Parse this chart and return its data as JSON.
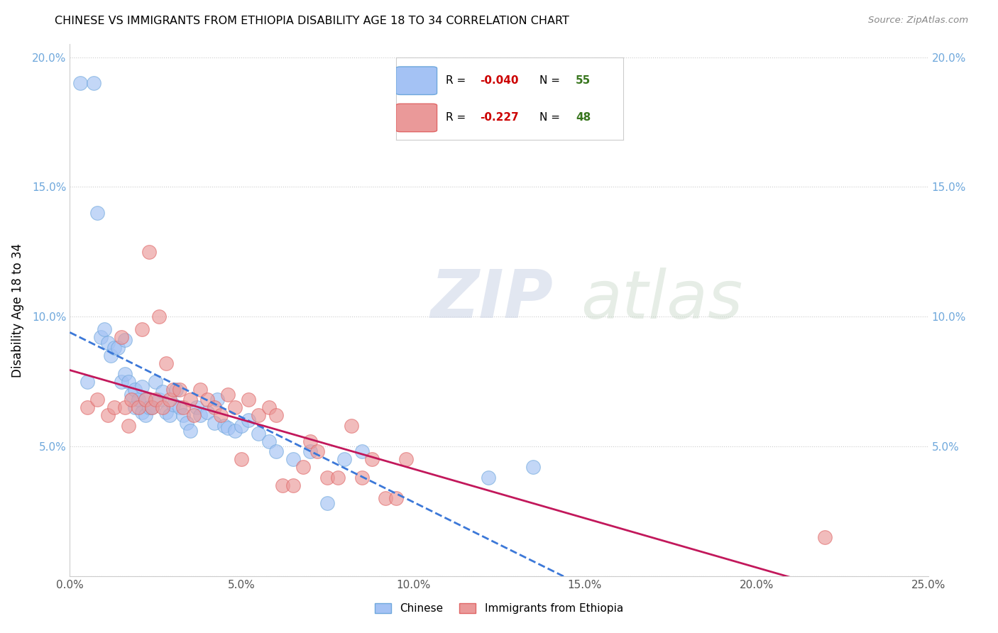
{
  "title": "CHINESE VS IMMIGRANTS FROM ETHIOPIA DISABILITY AGE 18 TO 34 CORRELATION CHART",
  "source": "Source: ZipAtlas.com",
  "ylabel": "Disability Age 18 to 34",
  "xlim": [
    0.0,
    0.25
  ],
  "ylim": [
    0.0,
    0.205
  ],
  "chinese_color": "#a4c2f4",
  "ethiopia_color": "#ea9999",
  "trendline_chinese_color": "#3c78d8",
  "trendline_ethiopia_color": "#c2185b",
  "chinese_R": -0.04,
  "chinese_N": 55,
  "ethiopia_R": -0.227,
  "ethiopia_N": 48,
  "legend_R_color": "#cc0000",
  "legend_N_color": "#38761d",
  "watermark_zip": "ZIP",
  "watermark_atlas": "atlas",
  "chinese_x": [
    0.003,
    0.007,
    0.005,
    0.008,
    0.009,
    0.01,
    0.011,
    0.012,
    0.013,
    0.014,
    0.015,
    0.016,
    0.016,
    0.017,
    0.018,
    0.019,
    0.019,
    0.02,
    0.021,
    0.021,
    0.022,
    0.022,
    0.023,
    0.024,
    0.025,
    0.026,
    0.027,
    0.028,
    0.029,
    0.03,
    0.031,
    0.032,
    0.033,
    0.034,
    0.035,
    0.037,
    0.038,
    0.04,
    0.042,
    0.043,
    0.045,
    0.046,
    0.048,
    0.05,
    0.052,
    0.055,
    0.058,
    0.06,
    0.065,
    0.07,
    0.075,
    0.08,
    0.085,
    0.122,
    0.135
  ],
  "chinese_y": [
    0.19,
    0.19,
    0.075,
    0.14,
    0.092,
    0.095,
    0.09,
    0.085,
    0.088,
    0.088,
    0.075,
    0.091,
    0.078,
    0.075,
    0.07,
    0.072,
    0.065,
    0.068,
    0.073,
    0.063,
    0.062,
    0.068,
    0.065,
    0.065,
    0.075,
    0.068,
    0.071,
    0.063,
    0.062,
    0.066,
    0.072,
    0.065,
    0.062,
    0.059,
    0.056,
    0.065,
    0.062,
    0.063,
    0.059,
    0.068,
    0.058,
    0.057,
    0.056,
    0.058,
    0.06,
    0.055,
    0.052,
    0.048,
    0.045,
    0.048,
    0.028,
    0.045,
    0.048,
    0.038,
    0.042
  ],
  "ethiopia_x": [
    0.005,
    0.008,
    0.011,
    0.013,
    0.015,
    0.016,
    0.017,
    0.018,
    0.02,
    0.021,
    0.022,
    0.023,
    0.024,
    0.025,
    0.026,
    0.027,
    0.028,
    0.029,
    0.03,
    0.032,
    0.033,
    0.035,
    0.036,
    0.038,
    0.04,
    0.042,
    0.044,
    0.046,
    0.048,
    0.05,
    0.052,
    0.055,
    0.058,
    0.06,
    0.062,
    0.065,
    0.068,
    0.07,
    0.072,
    0.075,
    0.078,
    0.082,
    0.085,
    0.088,
    0.092,
    0.095,
    0.098,
    0.22
  ],
  "ethiopia_y": [
    0.065,
    0.068,
    0.062,
    0.065,
    0.092,
    0.065,
    0.058,
    0.068,
    0.065,
    0.095,
    0.068,
    0.125,
    0.065,
    0.068,
    0.1,
    0.065,
    0.082,
    0.068,
    0.072,
    0.072,
    0.065,
    0.068,
    0.062,
    0.072,
    0.068,
    0.065,
    0.062,
    0.07,
    0.065,
    0.045,
    0.068,
    0.062,
    0.065,
    0.062,
    0.035,
    0.035,
    0.042,
    0.052,
    0.048,
    0.038,
    0.038,
    0.058,
    0.038,
    0.045,
    0.03,
    0.03,
    0.045,
    0.015
  ]
}
